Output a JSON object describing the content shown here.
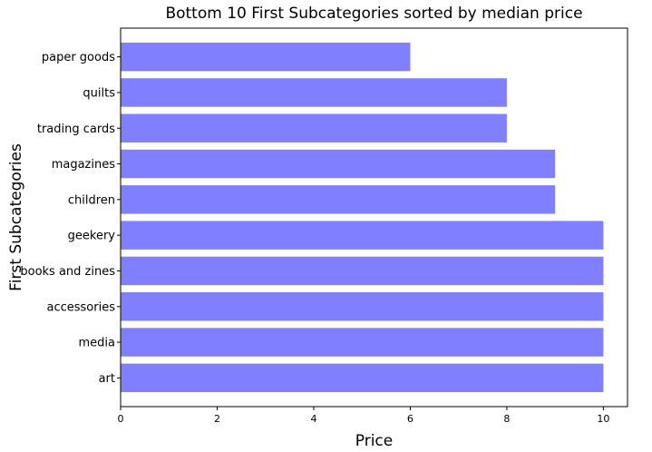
{
  "chart_data": {
    "type": "bar",
    "orientation": "horizontal",
    "title": "Bottom 10 First Subcategories sorted by median price",
    "xlabel": "Price",
    "ylabel": "First  Subcategories",
    "categories": [
      "paper goods",
      "quilts",
      "trading cards",
      "magazines",
      "children",
      "geekery",
      "books and zines",
      "accessories",
      "media",
      "art"
    ],
    "values": [
      6,
      8,
      8,
      9,
      9,
      10,
      10,
      10,
      10,
      10
    ],
    "xlim": [
      0,
      10.5
    ],
    "xticks": [
      0,
      2,
      4,
      6,
      8,
      10
    ],
    "grid": false,
    "legend": "none",
    "bar_color": "#7f7fff"
  }
}
